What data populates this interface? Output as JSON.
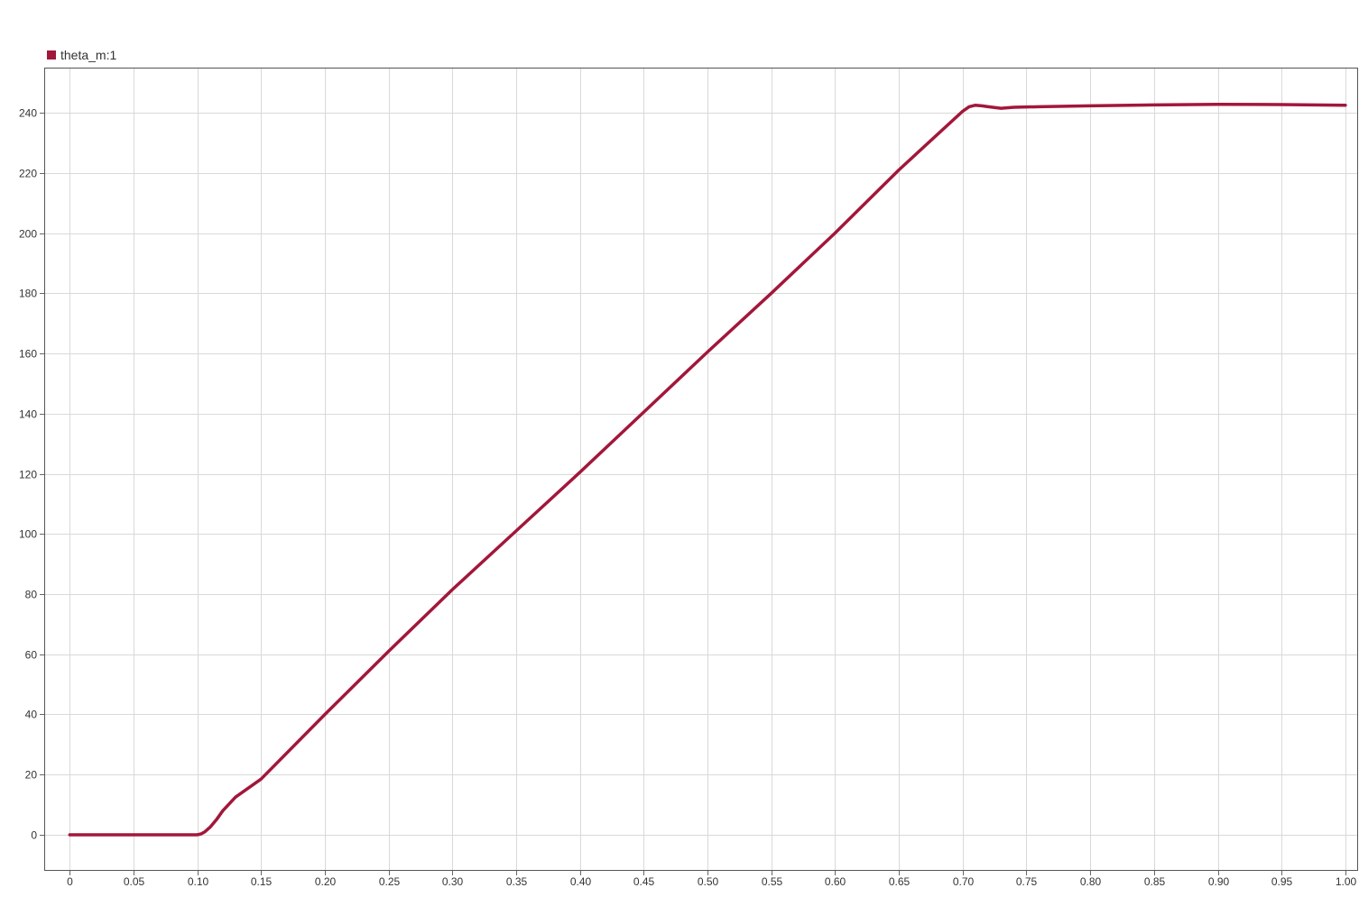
{
  "chart_data": {
    "type": "line",
    "title": "",
    "xlabel": "",
    "ylabel": "",
    "legend_position": "top-left",
    "grid": true,
    "xlim": [
      -0.02,
      1.01
    ],
    "ylim": [
      -12,
      255
    ],
    "x_ticks": [
      "0",
      "0.05",
      "0.10",
      "0.15",
      "0.20",
      "0.25",
      "0.30",
      "0.35",
      "0.40",
      "0.45",
      "0.50",
      "0.55",
      "0.60",
      "0.65",
      "0.70",
      "0.75",
      "0.80",
      "0.85",
      "0.90",
      "0.95",
      "1.00"
    ],
    "x_tick_values": [
      0,
      0.05,
      0.1,
      0.15,
      0.2,
      0.25,
      0.3,
      0.35,
      0.4,
      0.45,
      0.5,
      0.55,
      0.6,
      0.65,
      0.7,
      0.75,
      0.8,
      0.85,
      0.9,
      0.95,
      1.0
    ],
    "y_ticks": [
      "0",
      "20",
      "40",
      "60",
      "80",
      "100",
      "120",
      "140",
      "160",
      "180",
      "200",
      "220",
      "240"
    ],
    "y_tick_values": [
      0,
      20,
      40,
      60,
      80,
      100,
      120,
      140,
      160,
      180,
      200,
      220,
      240
    ],
    "series": [
      {
        "name": "theta_m:1",
        "color": "#a2173a",
        "x": [
          0,
          0.05,
          0.1,
          0.103,
          0.106,
          0.11,
          0.115,
          0.12,
          0.13,
          0.15,
          0.2,
          0.25,
          0.3,
          0.35,
          0.4,
          0.45,
          0.5,
          0.55,
          0.6,
          0.65,
          0.7,
          0.705,
          0.71,
          0.715,
          0.72,
          0.73,
          0.74,
          0.76,
          0.8,
          0.85,
          0.9,
          0.95,
          1.0
        ],
        "y": [
          0,
          0,
          0,
          0.3,
          1,
          2.5,
          5,
          8,
          12.5,
          18.5,
          40,
          61,
          81.5,
          101,
          120.5,
          140.5,
          160.5,
          180,
          200,
          221,
          240.5,
          242,
          242.5,
          242.3,
          242,
          241.5,
          241.8,
          242,
          242.3,
          242.6,
          242.8,
          242.7,
          242.5
        ]
      }
    ]
  }
}
